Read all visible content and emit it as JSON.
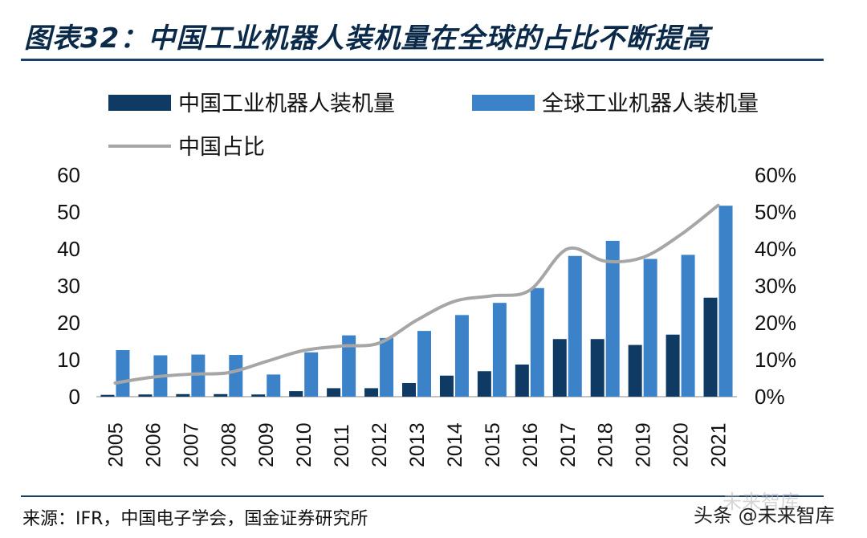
{
  "title": "图表32：中国工业机器人装机量在全球的占比不断提高",
  "source": "来源：IFR，中国电子学会，国金证券研究所",
  "watermark": "头条 @未来智库",
  "watermark_faint": "未来智库",
  "colors": {
    "china": "#0e3a63",
    "global": "#3b82c9",
    "share": "#a6a6a6",
    "rule": "#1c3f66"
  },
  "chart_data": {
    "type": "bar",
    "categories": [
      "2005",
      "2006",
      "2007",
      "2008",
      "2009",
      "2010",
      "2011",
      "2012",
      "2013",
      "2014",
      "2015",
      "2016",
      "2017",
      "2018",
      "2019",
      "2020",
      "2021"
    ],
    "series": [
      {
        "name": "中国工业机器人装机量",
        "type": "bar",
        "axis": "left",
        "values": [
          0.5,
          0.6,
          0.7,
          0.7,
          0.6,
          1.5,
          2.3,
          2.3,
          3.7,
          5.7,
          6.9,
          8.7,
          15.6,
          15.6,
          14.0,
          16.8,
          26.8
        ]
      },
      {
        "name": "全球工业机器人装机量",
        "type": "bar",
        "axis": "left",
        "values": [
          12.6,
          11.2,
          11.4,
          11.3,
          6.0,
          12.0,
          16.6,
          15.9,
          17.8,
          22.1,
          25.4,
          29.4,
          38.1,
          42.2,
          37.3,
          38.4,
          51.7
        ]
      },
      {
        "name": "中国占比",
        "type": "line",
        "axis": "right",
        "values": [
          3.7,
          5.3,
          6.1,
          6.5,
          9.5,
          12.5,
          13.7,
          14.5,
          20.7,
          25.8,
          27.3,
          28.8,
          40.0,
          36.7,
          37.7,
          43.8,
          51.8
        ]
      }
    ],
    "left_axis": {
      "ylim": [
        0,
        60
      ],
      "ticks": [
        "0",
        "10",
        "20",
        "30",
        "40",
        "50",
        "60"
      ]
    },
    "right_axis": {
      "ylim": [
        0,
        60
      ],
      "ticks": [
        "0%",
        "10%",
        "20%",
        "30%",
        "40%",
        "50%",
        "60%"
      ]
    },
    "legend_position": "top",
    "grid": false
  }
}
